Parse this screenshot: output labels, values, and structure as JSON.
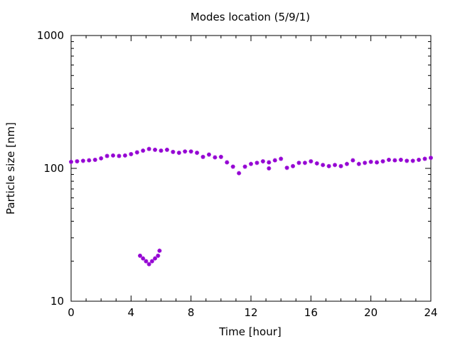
{
  "chart_data": {
    "type": "scatter",
    "title": "Modes location (5/9/1)",
    "xlabel": "Time [hour]",
    "ylabel": "Particle size [nm]",
    "xlim": [
      0,
      24
    ],
    "ylim": [
      10,
      1000
    ],
    "yscale": "log",
    "grid": false,
    "legend": "none",
    "marker_color": "#9400d3",
    "x_ticks": [
      {
        "value": 0,
        "label": "0"
      },
      {
        "value": 4,
        "label": "4"
      },
      {
        "value": 8,
        "label": "8"
      },
      {
        "value": 12,
        "label": "12"
      },
      {
        "value": 16,
        "label": "16"
      },
      {
        "value": 20,
        "label": "20"
      },
      {
        "value": 24,
        "label": "24"
      }
    ],
    "y_ticks": [
      {
        "value": 10,
        "label": "10"
      },
      {
        "value": 100,
        "label": "100"
      },
      {
        "value": 1000,
        "label": "1000"
      }
    ],
    "series": [
      {
        "x": [
          0,
          0.4,
          0.8,
          1.2,
          1.6,
          2.0,
          2.4,
          2.8,
          3.2,
          3.6,
          4.0,
          4.4,
          4.8,
          5.2,
          5.6,
          6.0,
          6.4,
          6.8,
          7.2,
          7.6,
          8.0,
          8.4,
          8.8,
          9.2,
          9.6,
          10.0,
          10.4,
          10.8,
          11.2,
          11.6,
          12.0,
          12.4,
          12.8,
          13.2,
          13.6,
          14.0,
          14.4,
          14.8,
          15.2,
          15.6,
          16.0,
          16.4,
          16.8,
          17.2,
          17.6,
          18.0,
          18.4,
          18.8,
          19.2,
          19.6,
          20.0,
          20.4,
          20.8,
          21.2,
          21.6,
          22.0,
          22.4,
          22.8,
          23.2,
          23.6,
          24.0
        ],
        "y": [
          112,
          113,
          114,
          115,
          116,
          119,
          124,
          125,
          124,
          125,
          128,
          132,
          136,
          140,
          138,
          136,
          138,
          133,
          131,
          134,
          134,
          131,
          122,
          127,
          121,
          122,
          111,
          103,
          92,
          103,
          108,
          110,
          113,
          111,
          115,
          118,
          101,
          104,
          110,
          110,
          113,
          109,
          106,
          104,
          106,
          104,
          108,
          115,
          108,
          110,
          112,
          111,
          113,
          116,
          115,
          116,
          114,
          114,
          116,
          118,
          120
        ]
      },
      {
        "x": [
          4.6,
          4.8,
          5.0,
          5.2,
          5.4,
          5.6,
          5.8,
          5.9
        ],
        "y": [
          22,
          21,
          20,
          19,
          20,
          21,
          22,
          24
        ]
      },
      {
        "x": [
          13.2
        ],
        "y": [
          100
        ]
      }
    ]
  }
}
